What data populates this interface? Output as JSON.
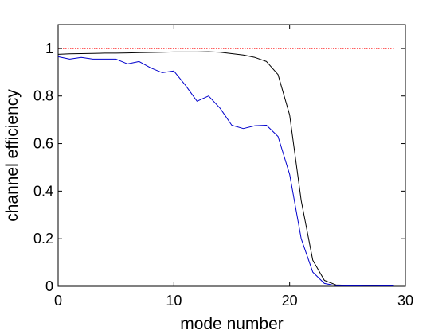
{
  "chart_data": {
    "type": "line",
    "title": "",
    "xlabel": "mode number",
    "ylabel": "channel efficiency",
    "xlim": [
      0,
      30
    ],
    "ylim": [
      0,
      1.1
    ],
    "xticks": [
      0,
      10,
      20,
      30
    ],
    "yticks": [
      0,
      0.2,
      0.4,
      0.6,
      0.8,
      1
    ],
    "ytick_labels": [
      "0",
      "0.2",
      "0.4",
      "0.6",
      "0.8",
      "1"
    ],
    "grid": false,
    "legend": "none",
    "series": [
      {
        "color": "#ff0000",
        "style": "dotted",
        "x": [
          0,
          29
        ],
        "y": [
          1.0,
          1.0
        ]
      },
      {
        "color": "#000000",
        "style": "solid",
        "x": [
          0,
          1,
          2,
          3,
          4,
          5,
          6,
          7,
          8,
          9,
          10,
          11,
          12,
          13,
          14,
          15,
          16,
          17,
          18,
          19,
          20,
          21,
          22,
          23,
          24,
          25,
          26,
          27,
          28,
          29
        ],
        "y": [
          0.975,
          0.977,
          0.978,
          0.979,
          0.98,
          0.98,
          0.981,
          0.982,
          0.983,
          0.984,
          0.985,
          0.985,
          0.985,
          0.986,
          0.984,
          0.978,
          0.972,
          0.962,
          0.945,
          0.89,
          0.72,
          0.36,
          0.11,
          0.025,
          0.006,
          0.004,
          0.004,
          0.004,
          0.004,
          0.003
        ]
      },
      {
        "color": "#0000cc",
        "style": "solid",
        "x": [
          0,
          1,
          2,
          3,
          4,
          5,
          6,
          7,
          8,
          9,
          10,
          11,
          12,
          13,
          14,
          15,
          16,
          17,
          18,
          19,
          20,
          21,
          22,
          23,
          24,
          25,
          26,
          27,
          28,
          29
        ],
        "y": [
          0.965,
          0.955,
          0.962,
          0.955,
          0.955,
          0.955,
          0.935,
          0.945,
          0.918,
          0.898,
          0.905,
          0.845,
          0.778,
          0.8,
          0.748,
          0.677,
          0.663,
          0.675,
          0.677,
          0.63,
          0.47,
          0.2,
          0.06,
          0.012,
          0.003,
          0.002,
          0.002,
          0.003,
          0.002,
          0.002
        ]
      }
    ]
  }
}
